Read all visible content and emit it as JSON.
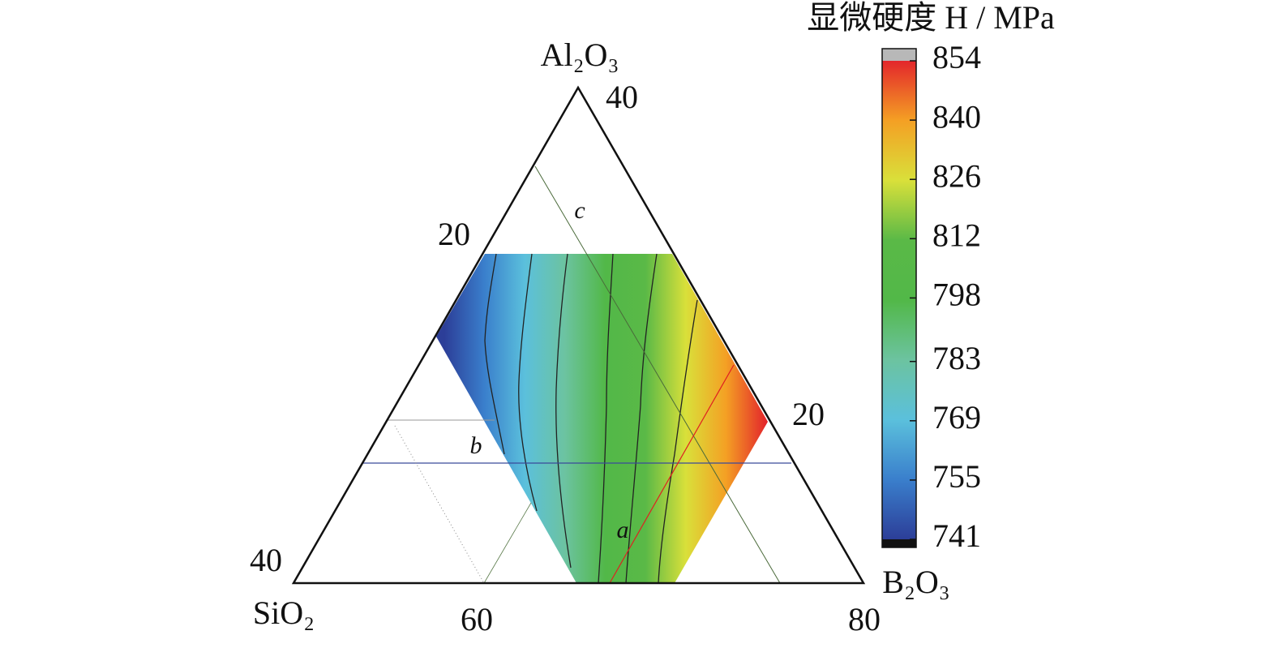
{
  "chart_data": {
    "type": "ternary",
    "axes": {
      "top": "Al₂O₃",
      "left": "SiO₂",
      "right": "B₂O₃"
    },
    "tick_labels": {
      "top": 40,
      "left_mid": 20,
      "left_bottom": 40,
      "right_mid": 20,
      "bottom_left": 60,
      "bottom_right": 80
    },
    "annotations": [
      "a",
      "b",
      "c"
    ],
    "colorbar": {
      "title": "显微硬度 H / MPa",
      "clim": [
        741,
        854
      ],
      "ticks": [
        741,
        755,
        769,
        783,
        798,
        812,
        826,
        840,
        854
      ],
      "colormap": [
        "#2c3e98",
        "#3a7fcc",
        "#5bc0dc",
        "#6cc3a0",
        "#52b848",
        "#5ab947",
        "#d9e03a",
        "#f4a024",
        "#e3262b"
      ],
      "under_color": "#111111",
      "over_color": "#b8b8b8"
    }
  }
}
